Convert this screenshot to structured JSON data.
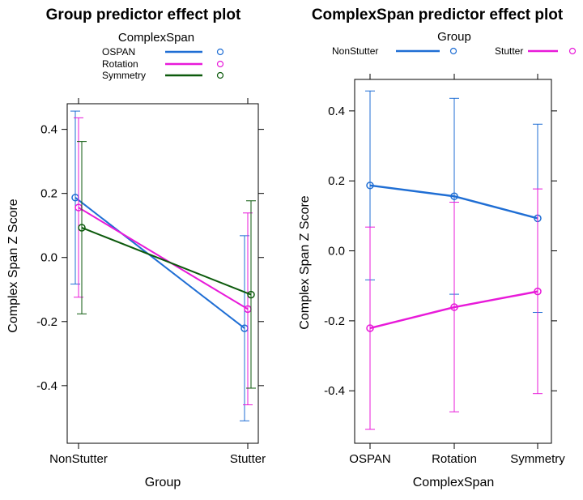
{
  "colors": {
    "OSPAN": "#1f6ed4",
    "Rotation": "#e81ad9",
    "Symmetry": "#0c5a0c",
    "NonStutter": "#1f6ed4",
    "Stutter": "#e81ad9"
  },
  "chart_data": [
    {
      "type": "line",
      "title": "Group predictor effect plot",
      "xlabel": "Group",
      "ylabel": "Complex Span Z Score",
      "legend_title": "ComplexSpan",
      "legend_placement": "top",
      "categories": [
        "NonStutter",
        "Stutter"
      ],
      "ylim": [
        -0.58,
        0.48
      ],
      "yticks": [
        -0.4,
        -0.2,
        0.0,
        0.2,
        0.4
      ],
      "ytick_labels": [
        "-0.4",
        "-0.2",
        "0.0",
        "0.2",
        "0.4"
      ],
      "error_bars": true,
      "series": [
        {
          "name": "OSPAN",
          "values": [
            0.187,
            -0.221
          ],
          "lower": [
            -0.083,
            -0.51
          ],
          "upper": [
            0.457,
            0.068
          ]
        },
        {
          "name": "Rotation",
          "values": [
            0.156,
            -0.161
          ],
          "lower": [
            -0.124,
            -0.46
          ],
          "upper": [
            0.436,
            0.139
          ]
        },
        {
          "name": "Symmetry",
          "values": [
            0.093,
            -0.116
          ],
          "lower": [
            -0.176,
            -0.408
          ],
          "upper": [
            0.362,
            0.177
          ]
        }
      ]
    },
    {
      "type": "line",
      "title": "ComplexSpan predictor effect plot",
      "xlabel": "ComplexSpan",
      "ylabel": "Complex Span Z Score",
      "legend_title": "Group",
      "legend_placement": "top",
      "categories": [
        "OSPAN",
        "Rotation",
        "Symmetry"
      ],
      "ylim": [
        -0.55,
        0.49
      ],
      "yticks": [
        -0.4,
        -0.2,
        0.0,
        0.2,
        0.4
      ],
      "ytick_labels": [
        "-0.4",
        "-0.2",
        "0.0",
        "0.2",
        "0.4"
      ],
      "error_bars": true,
      "series": [
        {
          "name": "NonStutter",
          "values": [
            0.187,
            0.156,
            0.093
          ],
          "lower": [
            -0.083,
            -0.124,
            -0.176
          ],
          "upper": [
            0.457,
            0.436,
            0.362
          ]
        },
        {
          "name": "Stutter",
          "values": [
            -0.221,
            -0.161,
            -0.116
          ],
          "lower": [
            -0.51,
            -0.46,
            -0.408
          ],
          "upper": [
            0.068,
            0.139,
            0.177
          ]
        }
      ]
    }
  ]
}
